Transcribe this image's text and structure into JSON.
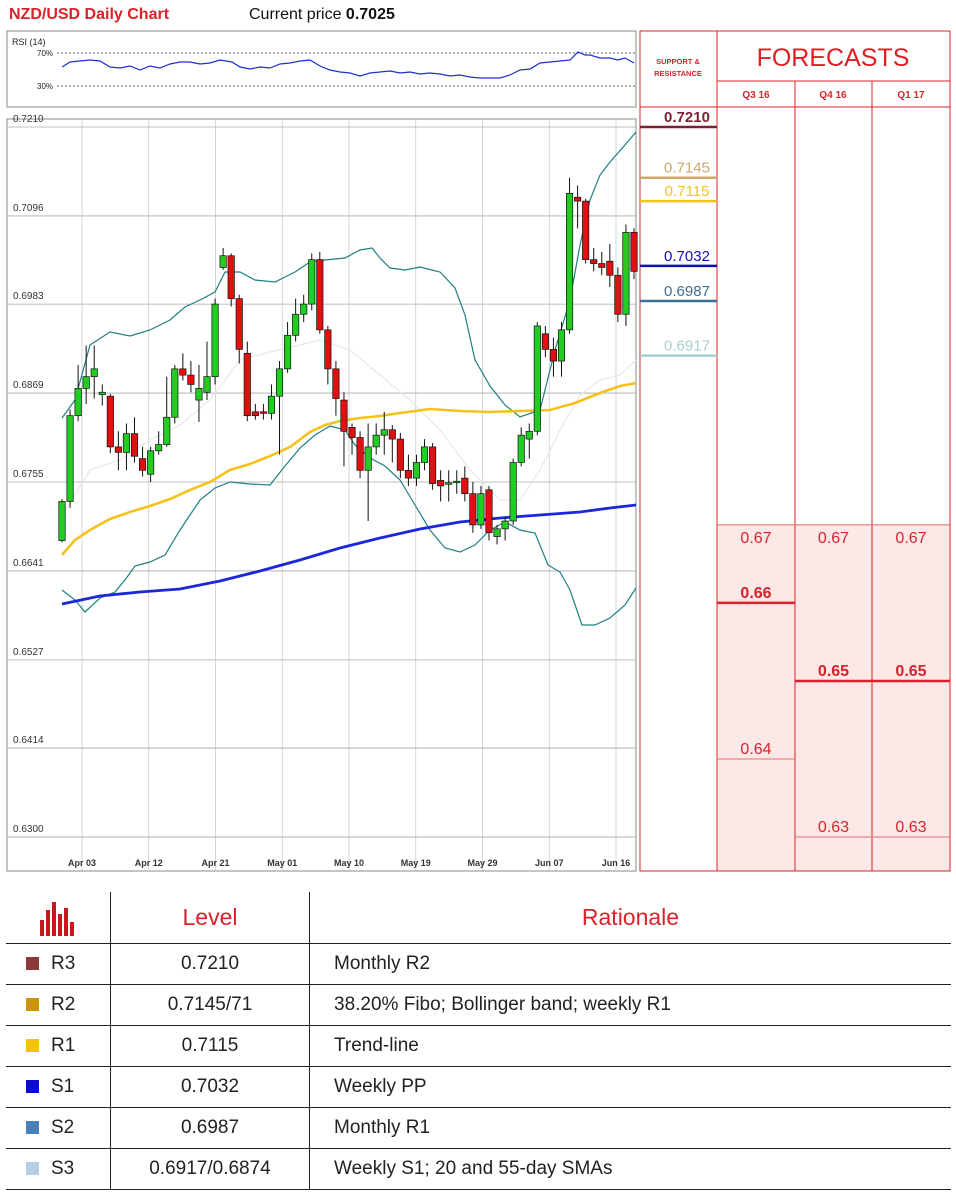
{
  "header": {
    "title": "NZD/USD Daily Chart",
    "price_label": "Current price ",
    "price_value": "0.7025"
  },
  "rsi": {
    "label": "RSI (14)",
    "upper": "70%",
    "lower": "30%"
  },
  "forecasts": {
    "title": "FORECASTS",
    "sr_label_1": "SUPPORT &",
    "sr_label_2": "RESISTANCE",
    "quarters": [
      "Q3 16",
      "Q4 16",
      "Q1 17"
    ],
    "ranges": [
      {
        "top": 0.67,
        "median": 0.66,
        "bottom": 0.64,
        "top_label": "0.67",
        "median_label": "0.66",
        "bottom_label": "0.64"
      },
      {
        "top": 0.67,
        "median": 0.65,
        "bottom": 0.63,
        "top_label": "0.67",
        "median_label": "0.65",
        "bottom_label": "0.63"
      },
      {
        "top": 0.67,
        "median": 0.65,
        "bottom": 0.63,
        "top_label": "0.67",
        "median_label": "0.65",
        "bottom_label": "0.63"
      }
    ]
  },
  "levels": [
    {
      "name": "R3",
      "price": 0.721,
      "label": "0.7210",
      "color": "#7b1f33",
      "swatch": "#8b3a3a",
      "value": "0.7210",
      "rationale": "Monthly R2"
    },
    {
      "name": "R2",
      "price": 0.7145,
      "label": "0.7145",
      "color": "#c9a96a",
      "swatch": "#c9960a",
      "value": "0.7145/71",
      "rationale": "38.20% Fibo; Bollinger band; weekly R1"
    },
    {
      "name": "R1",
      "price": 0.7115,
      "label": "0.7115",
      "color": "#f2c31c",
      "swatch": "#f5c400",
      "value": "0.7115",
      "rationale": "Trend-line"
    },
    {
      "name": "S1",
      "price": 0.7032,
      "label": "0.7032",
      "color": "#1010b8",
      "swatch": "#0a0ad0",
      "value": "0.7032",
      "rationale": "Weekly PP"
    },
    {
      "name": "S2",
      "price": 0.6987,
      "label": "0.6987",
      "color": "#3e6e92",
      "swatch": "#4a7fb8",
      "value": "0.6987",
      "rationale": "Monthly R1"
    },
    {
      "name": "S3",
      "price": 0.6917,
      "label": "0.6917",
      "color": "#a9cfcf",
      "swatch": "#b8cde6",
      "value": "0.6917/0.6874",
      "rationale": "Weekly S1; 20 and 55-day SMAs"
    }
  ],
  "table": {
    "col_level": "Level",
    "col_rationale": "Rationale"
  },
  "chart_data": {
    "type": "candlestick",
    "title": "NZD/USD Daily Chart",
    "y_ticks": [
      "0.7210",
      "0.7096",
      "0.6983",
      "0.6869",
      "0.6755",
      "0.6641",
      "0.6527",
      "0.6414",
      "0.6300"
    ],
    "ylim": [
      0.63,
      0.721
    ],
    "x_ticks": [
      "Apr 03",
      "Apr 12",
      "Apr 21",
      "May 01",
      "May 10",
      "May 19",
      "May 29",
      "Jun 07",
      "Jun 16"
    ],
    "candles": [
      [
        0.668,
        0.673,
        0.6678,
        0.6733
      ],
      [
        0.673,
        0.684,
        0.6722,
        0.6848
      ],
      [
        0.684,
        0.6875,
        0.6833,
        0.6905
      ],
      [
        0.6875,
        0.689,
        0.6855,
        0.693
      ],
      [
        0.689,
        0.69,
        0.6862,
        0.693
      ],
      [
        0.6867,
        0.687,
        0.6853,
        0.688
      ],
      [
        0.6865,
        0.68,
        0.6792,
        0.6868
      ],
      [
        0.68,
        0.6793,
        0.677,
        0.682
      ],
      [
        0.6793,
        0.6817,
        0.677,
        0.683
      ],
      [
        0.6817,
        0.6788,
        0.678,
        0.6838
      ],
      [
        0.6785,
        0.677,
        0.6762,
        0.68
      ],
      [
        0.6765,
        0.6795,
        0.6755,
        0.68
      ],
      [
        0.6795,
        0.6803,
        0.679,
        0.682
      ],
      [
        0.6803,
        0.6838,
        0.68,
        0.689
      ],
      [
        0.6838,
        0.69,
        0.683,
        0.6905
      ],
      [
        0.69,
        0.6892,
        0.6885,
        0.692
      ],
      [
        0.6892,
        0.688,
        0.687,
        0.691
      ],
      [
        0.686,
        0.6875,
        0.6832,
        0.6905
      ],
      [
        0.687,
        0.689,
        0.686,
        0.6935
      ],
      [
        0.689,
        0.6983,
        0.688,
        0.699
      ],
      [
        0.703,
        0.7045,
        0.7027,
        0.7055
      ],
      [
        0.7045,
        0.699,
        0.698,
        0.7048
      ],
      [
        0.699,
        0.6925,
        0.6907,
        0.6995
      ],
      [
        0.692,
        0.684,
        0.6833,
        0.6935
      ],
      [
        0.6845,
        0.684,
        0.6835,
        0.6855
      ],
      [
        0.6845,
        0.6843,
        0.6835,
        0.6855
      ],
      [
        0.6843,
        0.6865,
        0.6835,
        0.688
      ],
      [
        0.6865,
        0.69,
        0.679,
        0.691
      ],
      [
        0.69,
        0.6943,
        0.6895,
        0.696
      ],
      [
        0.6943,
        0.697,
        0.6935,
        0.699
      ],
      [
        0.697,
        0.6983,
        0.696,
        0.6995
      ],
      [
        0.6983,
        0.704,
        0.6975,
        0.7048
      ],
      [
        0.704,
        0.695,
        0.6945,
        0.705
      ],
      [
        0.695,
        0.69,
        0.688,
        0.6955
      ],
      [
        0.69,
        0.6862,
        0.684,
        0.691
      ],
      [
        0.686,
        0.682,
        0.6775,
        0.687
      ],
      [
        0.6825,
        0.6812,
        0.679,
        0.683
      ],
      [
        0.6812,
        0.677,
        0.676,
        0.682
      ],
      [
        0.677,
        0.68,
        0.6705,
        0.683
      ],
      [
        0.68,
        0.6815,
        0.679,
        0.683
      ],
      [
        0.6815,
        0.6822,
        0.679,
        0.6845
      ],
      [
        0.6822,
        0.681,
        0.678,
        0.6828
      ],
      [
        0.681,
        0.677,
        0.676,
        0.6818
      ],
      [
        0.677,
        0.676,
        0.675,
        0.679
      ],
      [
        0.676,
        0.678,
        0.675,
        0.679
      ],
      [
        0.678,
        0.68,
        0.677,
        0.681
      ],
      [
        0.68,
        0.6753,
        0.6745,
        0.6805
      ],
      [
        0.6757,
        0.675,
        0.673,
        0.677
      ],
      [
        0.6754,
        0.6754,
        0.673,
        0.677
      ],
      [
        0.6756,
        0.6756,
        0.674,
        0.677
      ],
      [
        0.676,
        0.674,
        0.673,
        0.6775
      ],
      [
        0.674,
        0.67,
        0.669,
        0.6755
      ],
      [
        0.67,
        0.674,
        0.6695,
        0.675
      ],
      [
        0.6745,
        0.669,
        0.668,
        0.675
      ],
      [
        0.6685,
        0.6695,
        0.6675,
        0.67
      ],
      [
        0.6695,
        0.6705,
        0.668,
        0.671
      ],
      [
        0.6705,
        0.678,
        0.67,
        0.6785
      ],
      [
        0.678,
        0.6815,
        0.6775,
        0.6825
      ],
      [
        0.681,
        0.682,
        0.6785,
        0.683
      ],
      [
        0.682,
        0.6955,
        0.6815,
        0.696
      ],
      [
        0.6945,
        0.6925,
        0.6915,
        0.6955
      ],
      [
        0.6925,
        0.691,
        0.689,
        0.694
      ],
      [
        0.691,
        0.695,
        0.689,
        0.696
      ],
      [
        0.695,
        0.7125,
        0.6945,
        0.7145
      ],
      [
        0.712,
        0.7115,
        0.708,
        0.7135
      ],
      [
        0.7115,
        0.704,
        0.7035,
        0.7118
      ],
      [
        0.704,
        0.7035,
        0.7025,
        0.7055
      ],
      [
        0.7035,
        0.703,
        0.702,
        0.705
      ],
      [
        0.7038,
        0.702,
        0.7005,
        0.706
      ],
      [
        0.702,
        0.697,
        0.696,
        0.703
      ],
      [
        0.697,
        0.7075,
        0.6955,
        0.7085
      ],
      [
        0.7075,
        0.7025,
        0.7015,
        0.708
      ]
    ]
  }
}
